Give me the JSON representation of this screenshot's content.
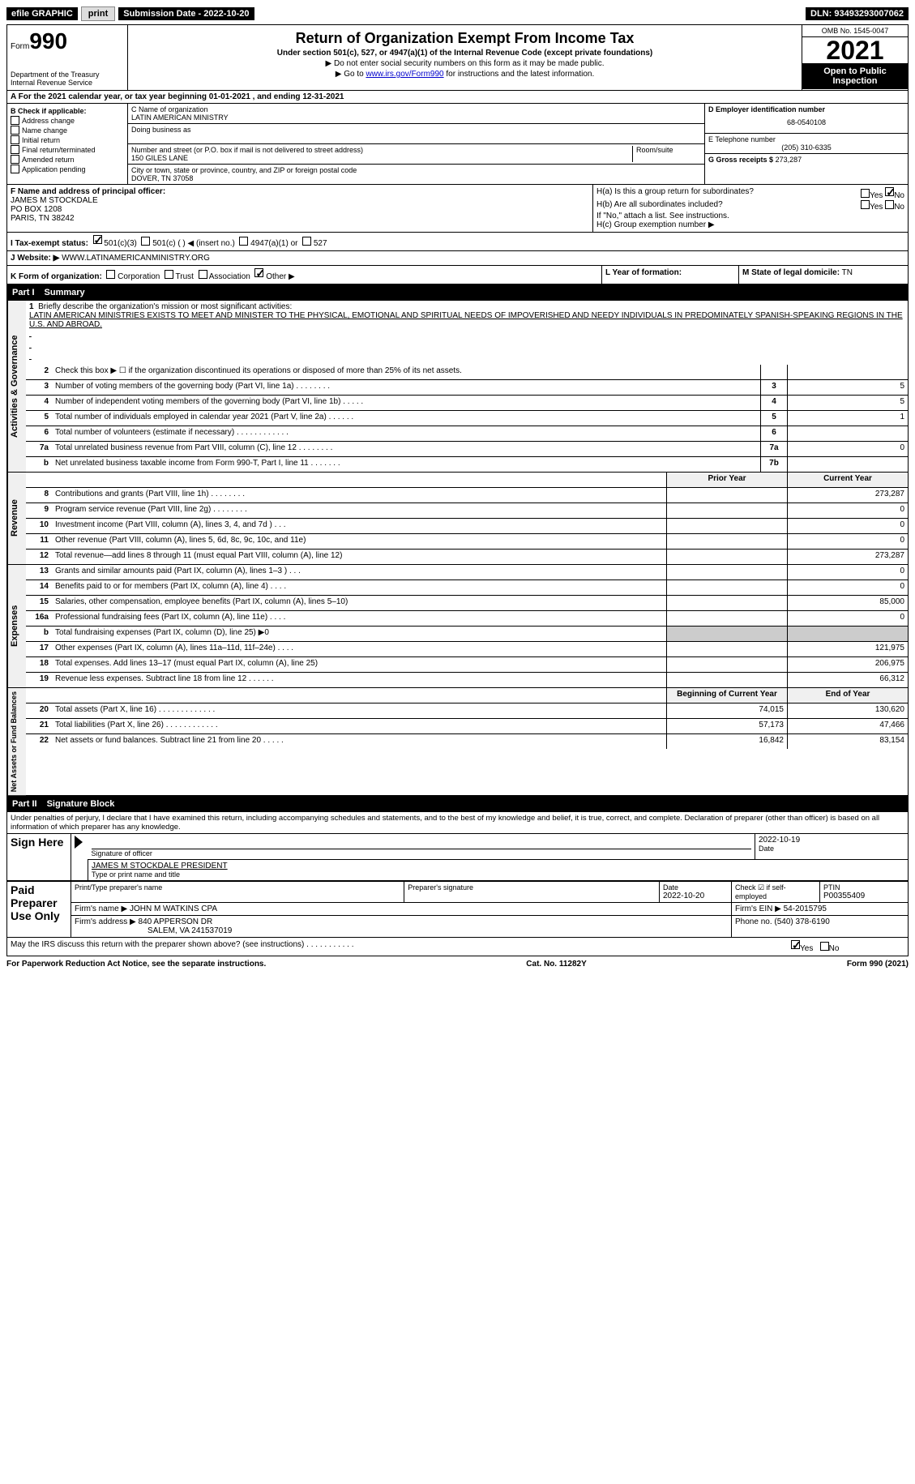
{
  "top": {
    "efile": "efile GRAPHIC",
    "print": "print",
    "sub_label": "Submission Date - 2022-10-20",
    "dln": "DLN: 93493293007062"
  },
  "header": {
    "form_word": "Form",
    "form_num": "990",
    "title": "Return of Organization Exempt From Income Tax",
    "subtitle": "Under section 501(c), 527, or 4947(a)(1) of the Internal Revenue Code (except private foundations)",
    "note1": "▶ Do not enter social security numbers on this form as it may be made public.",
    "note2_pre": "▶ Go to ",
    "note2_link": "www.irs.gov/Form990",
    "note2_post": " for instructions and the latest information.",
    "dept": "Department of the Treasury\nInternal Revenue Service",
    "omb": "OMB No. 1545-0047",
    "year": "2021",
    "inspect": "Open to Public Inspection"
  },
  "sectionA": "A For the 2021 calendar year, or tax year beginning 01-01-2021    , and ending 12-31-2021",
  "colB": {
    "header": "B Check if applicable:",
    "items": [
      "Address change",
      "Name change",
      "Initial return",
      "Final return/terminated",
      "Amended return",
      "Application pending"
    ]
  },
  "colC": {
    "name_label": "C Name of organization",
    "name": "LATIN AMERICAN MINISTRY",
    "dba_label": "Doing business as",
    "addr_label": "Number and street (or P.O. box if mail is not delivered to street address)",
    "room_label": "Room/suite",
    "addr": "150 GILES LANE",
    "city_label": "City or town, state or province, country, and ZIP or foreign postal code",
    "city": "DOVER, TN   37058"
  },
  "colDE": {
    "d_label": "D Employer identification number",
    "d_val": "68-0540108",
    "e_label": "E Telephone number",
    "e_val": "(205) 310-6335",
    "g_label": "G Gross receipts $",
    "g_val": "273,287"
  },
  "officer": {
    "f_label": "F Name and address of principal officer:",
    "name": "JAMES M STOCKDALE",
    "addr1": "PO BOX 1208",
    "addr2": "PARIS, TN   38242"
  },
  "hblock": {
    "ha": "H(a)  Is this a group return for subordinates?",
    "hb": "H(b)  Are all subordinates included?",
    "hb_note": "If \"No,\" attach a list. See instructions.",
    "hc": "H(c)  Group exemption number ▶",
    "yes": "Yes",
    "no": "No"
  },
  "rowI": {
    "label": "I  Tax-exempt status:",
    "opts": [
      "501(c)(3)",
      "501(c) (  ) ◀ (insert no.)",
      "4947(a)(1) or",
      "527"
    ]
  },
  "rowJ": {
    "label": "J  Website: ▶",
    "val": "WWW.LATINAMERICANMINISTRY.ORG"
  },
  "rowK": {
    "label": "K Form of organization:",
    "opts": [
      "Corporation",
      "Trust",
      "Association",
      "Other ▶"
    ],
    "l_label": "L Year of formation:",
    "m_label": "M State of legal domicile:",
    "m_val": "TN"
  },
  "part1": {
    "num": "Part I",
    "title": "Summary"
  },
  "mission": {
    "num": "1",
    "label": "Briefly describe the organization's mission or most significant activities:",
    "text": "LATIN AMERICAN MINISTRIES EXISTS TO MEET AND MINISTER TO THE PHYSICAL, EMOTIONAL AND SPIRITUAL NEEDS OF IMPOVERISHED AND NEEDY INDIVIDUALS IN PREDOMINATELY SPANISH-SPEAKING REGIONS IN THE U.S. AND ABROAD."
  },
  "gov_lines": [
    {
      "n": "2",
      "d": "Check this box ▶ ☐ if the organization discontinued its operations or disposed of more than 25% of its net assets.",
      "b": "",
      "v": ""
    },
    {
      "n": "3",
      "d": "Number of voting members of the governing body (Part VI, line 1a)   .    .    .    .    .    .    .    .",
      "b": "3",
      "v": "5"
    },
    {
      "n": "4",
      "d": "Number of independent voting members of the governing body (Part VI, line 1b)   .    .    .    .    .",
      "b": "4",
      "v": "5"
    },
    {
      "n": "5",
      "d": "Total number of individuals employed in calendar year 2021 (Part V, line 2a)   .    .    .    .    .    .",
      "b": "5",
      "v": "1"
    },
    {
      "n": "6",
      "d": "Total number of volunteers (estimate if necessary)    .    .    .    .    .    .    .    .    .    .    .    .",
      "b": "6",
      "v": ""
    },
    {
      "n": "7a",
      "d": "Total unrelated business revenue from Part VIII, column (C), line 12   .    .    .    .    .    .    .    .",
      "b": "7a",
      "v": "0"
    },
    {
      "n": "b",
      "d": "Net unrelated business taxable income from Form 990-T, Part I, line 11   .    .    .    .    .    .    .",
      "b": "7b",
      "v": ""
    }
  ],
  "year_cols": {
    "prior": "Prior Year",
    "current": "Current Year"
  },
  "rev_lines": [
    {
      "n": "8",
      "d": "Contributions and grants (Part VIII, line 1h)   .    .    .    .    .    .    .    .",
      "p": "",
      "c": "273,287"
    },
    {
      "n": "9",
      "d": "Program service revenue (Part VIII, line 2g)   .    .    .    .    .    .    .    .",
      "p": "",
      "c": "0"
    },
    {
      "n": "10",
      "d": "Investment income (Part VIII, column (A), lines 3, 4, and 7d )   .    .    .",
      "p": "",
      "c": "0"
    },
    {
      "n": "11",
      "d": "Other revenue (Part VIII, column (A), lines 5, 6d, 8c, 9c, 10c, and 11e)",
      "p": "",
      "c": "0"
    },
    {
      "n": "12",
      "d": "Total revenue—add lines 8 through 11 (must equal Part VIII, column (A), line 12)",
      "p": "",
      "c": "273,287"
    }
  ],
  "exp_lines": [
    {
      "n": "13",
      "d": "Grants and similar amounts paid (Part IX, column (A), lines 1–3 )   .    .    .",
      "p": "",
      "c": "0"
    },
    {
      "n": "14",
      "d": "Benefits paid to or for members (Part IX, column (A), line 4)   .    .    .    .",
      "p": "",
      "c": "0"
    },
    {
      "n": "15",
      "d": "Salaries, other compensation, employee benefits (Part IX, column (A), lines 5–10)",
      "p": "",
      "c": "85,000"
    },
    {
      "n": "16a",
      "d": "Professional fundraising fees (Part IX, column (A), line 11e)   .    .    .    .",
      "p": "",
      "c": "0"
    },
    {
      "n": "b",
      "d": "Total fundraising expenses (Part IX, column (D), line 25) ▶0",
      "p": "shaded",
      "c": "shaded"
    },
    {
      "n": "17",
      "d": "Other expenses (Part IX, column (A), lines 11a–11d, 11f–24e)   .    .    .    .",
      "p": "",
      "c": "121,975"
    },
    {
      "n": "18",
      "d": "Total expenses. Add lines 13–17 (must equal Part IX, column (A), line 25)",
      "p": "",
      "c": "206,975"
    },
    {
      "n": "19",
      "d": "Revenue less expenses. Subtract line 18 from line 12   .    .    .    .    .    .",
      "p": "",
      "c": "66,312"
    }
  ],
  "net_cols": {
    "begin": "Beginning of Current Year",
    "end": "End of Year"
  },
  "net_lines": [
    {
      "n": "20",
      "d": "Total assets (Part X, line 16)   .    .    .    .    .    .    .    .    .    .    .    .    .",
      "p": "74,015",
      "c": "130,620"
    },
    {
      "n": "21",
      "d": "Total liabilities (Part X, line 26)   .    .    .    .    .    .    .    .    .    .    .    .",
      "p": "57,173",
      "c": "47,466"
    },
    {
      "n": "22",
      "d": "Net assets or fund balances. Subtract line 21 from line 20   .    .    .    .    .",
      "p": "16,842",
      "c": "83,154"
    }
  ],
  "part2": {
    "num": "Part II",
    "title": "Signature Block"
  },
  "penalties": "Under penalties of perjury, I declare that I have examined this return, including accompanying schedules and statements, and to the best of my knowledge and belief, it is true, correct, and complete. Declaration of preparer (other than officer) is based on all information of which preparer has any knowledge.",
  "sign": {
    "here": "Sign Here",
    "sig_label": "Signature of officer",
    "date_label": "Date",
    "date_val": "2022-10-19",
    "name_label": "Type or print name and title",
    "name_val": "JAMES M STOCKDALE  PRESIDENT"
  },
  "paid": {
    "label": "Paid Preparer Use Only",
    "print_label": "Print/Type preparer's name",
    "sig_label": "Preparer's signature",
    "date_label": "Date",
    "date_val": "2022-10-20",
    "check_label": "Check ☑ if self-employed",
    "ptin_label": "PTIN",
    "ptin_val": "P00355409",
    "firm_name_label": "Firm's name    ▶",
    "firm_name": "JOHN M WATKINS CPA",
    "firm_ein_label": "Firm's EIN ▶",
    "firm_ein": "54-2015795",
    "firm_addr_label": "Firm's address ▶",
    "firm_addr1": "840 APPERSON DR",
    "firm_addr2": "SALEM, VA  241537019",
    "phone_label": "Phone no.",
    "phone": "(540) 378-6190"
  },
  "discuss": {
    "text": "May the IRS discuss this return with the preparer shown above? (see instructions)   .    .    .    .    .    .    .    .    .    .    .",
    "yes": "Yes",
    "no": "No"
  },
  "footer": {
    "pra": "For Paperwork Reduction Act Notice, see the separate instructions.",
    "cat": "Cat. No. 11282Y",
    "form": "Form 990 (2021)"
  },
  "vert": {
    "gov": "Activities & Governance",
    "rev": "Revenue",
    "exp": "Expenses",
    "net": "Net Assets or Fund Balances"
  }
}
